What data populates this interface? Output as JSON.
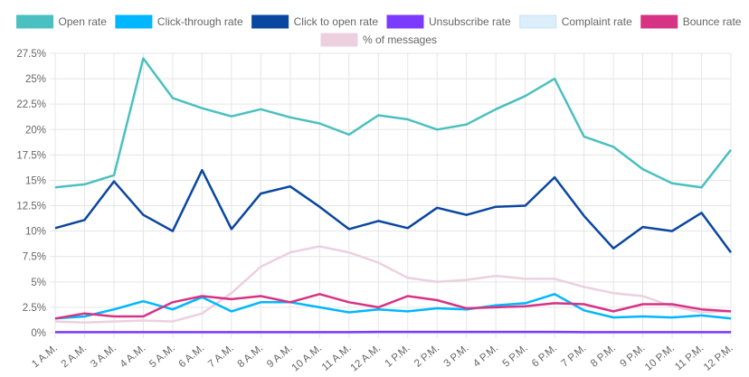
{
  "chart_data": {
    "type": "line",
    "categories": [
      "1 A.M.",
      "2 A.M.",
      "3 A.M.",
      "4 A.M.",
      "5 A.M.",
      "6 A.M.",
      "7 A.M.",
      "8 A.M.",
      "9 A.M.",
      "10 A.M.",
      "11 A.M.",
      "12 A.M.",
      "1 P.M.",
      "2 P.M.",
      "3 P.M.",
      "4 P.M.",
      "5 P.M.",
      "6 P.M.",
      "7 P.M.",
      "8 P.M.",
      "9 P.M.",
      "10 P.M.",
      "11 P.M.",
      "12 P.M."
    ],
    "y_ticks": [
      "0%",
      "2.5%",
      "5%",
      "7.5%",
      "10%",
      "12.5%",
      "15%",
      "17.5%",
      "20%",
      "22.5%",
      "25%",
      "27.5%"
    ],
    "ylim": [
      0,
      27.5
    ],
    "y_unit": "%",
    "grid": true,
    "legend_position": "top",
    "series": [
      {
        "name": "Open rate",
        "color": "#4bc0c0",
        "values": [
          14.3,
          14.6,
          15.5,
          27.0,
          23.1,
          22.1,
          21.3,
          22.0,
          21.2,
          20.6,
          19.5,
          21.4,
          21.0,
          20.0,
          20.5,
          22.0,
          23.3,
          25.0,
          19.3,
          18.3,
          16.1,
          14.7,
          14.3,
          18.0
        ]
      },
      {
        "name": "Click-through rate",
        "color": "#00b7ff",
        "values": [
          1.4,
          1.6,
          2.3,
          3.1,
          2.3,
          3.5,
          2.1,
          3.0,
          3.0,
          2.5,
          2.0,
          2.3,
          2.1,
          2.4,
          2.3,
          2.7,
          2.9,
          3.8,
          2.2,
          1.5,
          1.6,
          1.5,
          1.7,
          1.4
        ]
      },
      {
        "name": "Click to open rate",
        "color": "#0a47a0",
        "values": [
          10.3,
          11.1,
          14.9,
          11.6,
          10.0,
          16.0,
          10.2,
          13.7,
          14.4,
          12.4,
          10.2,
          11.0,
          10.3,
          12.3,
          11.6,
          12.4,
          12.5,
          15.3,
          11.5,
          8.3,
          10.4,
          10.0,
          11.8,
          7.9
        ]
      },
      {
        "name": "Unsubscribe rate",
        "color": "#7c3aff",
        "values": [
          0.05,
          0.05,
          0.05,
          0.05,
          0.05,
          0.05,
          0.05,
          0.05,
          0.05,
          0.05,
          0.05,
          0.08,
          0.08,
          0.08,
          0.08,
          0.08,
          0.08,
          0.08,
          0.05,
          0.05,
          0.05,
          0.05,
          0.05,
          0.05
        ]
      },
      {
        "name": "Complaint rate",
        "color": "#dbeefa",
        "values": [
          0,
          0,
          0,
          0,
          0,
          0,
          0,
          0,
          0,
          0,
          0,
          0,
          0,
          0,
          0,
          0,
          0,
          0,
          0,
          0,
          0,
          0,
          0,
          0
        ]
      },
      {
        "name": "Bounce rate",
        "color": "#d63384",
        "values": [
          1.4,
          1.9,
          1.6,
          1.6,
          3.0,
          3.6,
          3.3,
          3.6,
          3.0,
          3.8,
          3.0,
          2.5,
          3.6,
          3.2,
          2.4,
          2.5,
          2.6,
          2.9,
          2.8,
          2.1,
          2.8,
          2.8,
          2.3,
          2.1
        ]
      },
      {
        "name": "% of messages",
        "color": "#ecd0e0",
        "values": [
          1.1,
          1.0,
          1.1,
          1.2,
          1.1,
          1.9,
          3.9,
          6.5,
          7.9,
          8.5,
          7.9,
          6.9,
          5.4,
          5.0,
          5.2,
          5.6,
          5.3,
          5.3,
          4.5,
          3.9,
          3.6,
          2.6,
          2.0,
          2.1
        ]
      }
    ]
  }
}
